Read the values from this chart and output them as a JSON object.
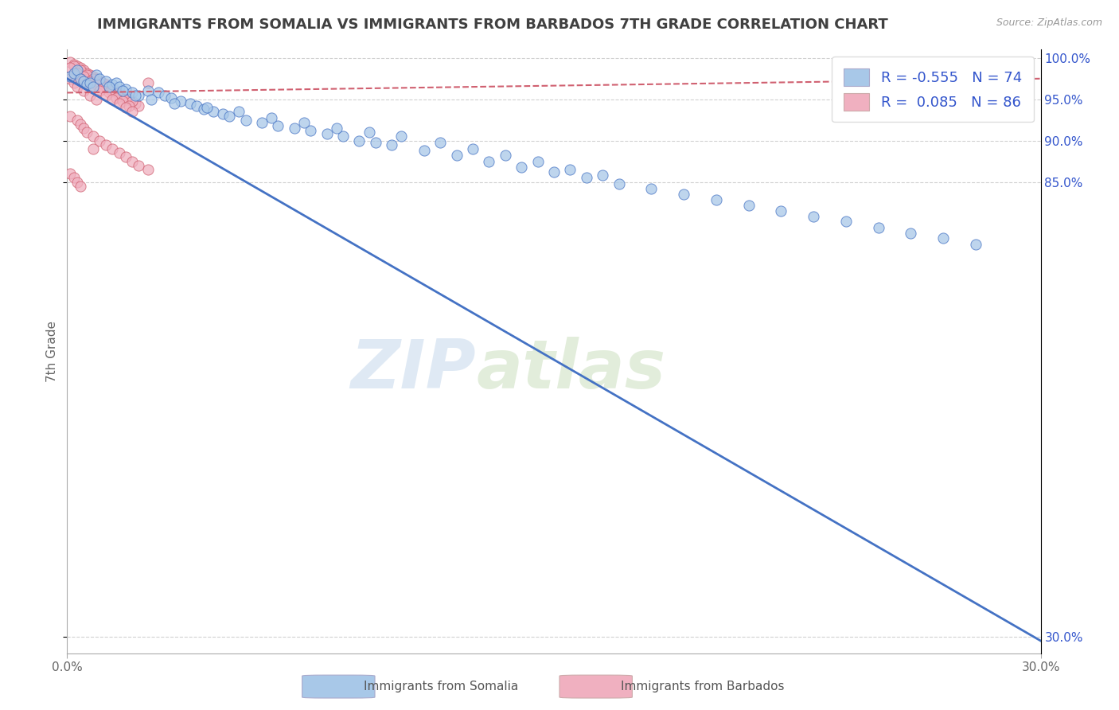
{
  "title": "IMMIGRANTS FROM SOMALIA VS IMMIGRANTS FROM BARBADOS 7TH GRADE CORRELATION CHART",
  "source": "Source: ZipAtlas.com",
  "ylabel": "7th Grade",
  "xlabel_somalia": "Immigrants from Somalia",
  "xlabel_barbados": "Immigrants from Barbados",
  "xlim": [
    0.0,
    0.3
  ],
  "ylim": [
    0.28,
    1.01
  ],
  "R_somalia": -0.555,
  "N_somalia": 74,
  "R_barbados": 0.085,
  "N_barbados": 86,
  "color_somalia": "#a8c8e8",
  "color_barbados": "#f0b0c0",
  "line_somalia": "#4472c4",
  "line_barbados": "#d06070",
  "watermark_zip": "ZIP",
  "watermark_atlas": "atlas",
  "background_color": "#ffffff",
  "grid_color": "#cccccc",
  "title_color": "#404040",
  "legend_text_color": "#3355cc",
  "trend_somalia_x0": 0.0,
  "trend_somalia_y0": 0.975,
  "trend_somalia_x1": 0.3,
  "trend_somalia_y1": 0.295,
  "trend_barbados_x0": 0.0,
  "trend_barbados_y0": 0.958,
  "trend_barbados_x1": 0.3,
  "trend_barbados_y1": 0.975,
  "somalia_scatter_x": [
    0.001,
    0.002,
    0.003,
    0.004,
    0.005,
    0.006,
    0.007,
    0.008,
    0.009,
    0.01,
    0.012,
    0.014,
    0.015,
    0.016,
    0.018,
    0.02,
    0.022,
    0.025,
    0.028,
    0.03,
    0.032,
    0.035,
    0.038,
    0.04,
    0.042,
    0.045,
    0.048,
    0.05,
    0.055,
    0.06,
    0.065,
    0.07,
    0.075,
    0.08,
    0.085,
    0.09,
    0.095,
    0.1,
    0.11,
    0.12,
    0.13,
    0.14,
    0.15,
    0.16,
    0.17,
    0.18,
    0.19,
    0.2,
    0.21,
    0.22,
    0.23,
    0.24,
    0.25,
    0.26,
    0.27,
    0.28,
    0.013,
    0.017,
    0.021,
    0.026,
    0.033,
    0.043,
    0.053,
    0.063,
    0.073,
    0.083,
    0.093,
    0.103,
    0.115,
    0.125,
    0.135,
    0.145,
    0.155,
    0.165
  ],
  "somalia_scatter_y": [
    0.978,
    0.982,
    0.985,
    0.975,
    0.972,
    0.968,
    0.97,
    0.965,
    0.98,
    0.975,
    0.972,
    0.968,
    0.97,
    0.965,
    0.962,
    0.958,
    0.955,
    0.96,
    0.958,
    0.955,
    0.952,
    0.948,
    0.945,
    0.942,
    0.938,
    0.935,
    0.932,
    0.93,
    0.925,
    0.922,
    0.918,
    0.915,
    0.912,
    0.908,
    0.905,
    0.9,
    0.898,
    0.895,
    0.888,
    0.882,
    0.875,
    0.868,
    0.862,
    0.855,
    0.848,
    0.842,
    0.835,
    0.828,
    0.822,
    0.815,
    0.808,
    0.802,
    0.795,
    0.788,
    0.782,
    0.775,
    0.965,
    0.96,
    0.955,
    0.95,
    0.945,
    0.94,
    0.935,
    0.928,
    0.922,
    0.915,
    0.91,
    0.905,
    0.898,
    0.89,
    0.882,
    0.875,
    0.865,
    0.858
  ],
  "barbados_scatter_x": [
    0.001,
    0.002,
    0.003,
    0.004,
    0.005,
    0.006,
    0.007,
    0.008,
    0.009,
    0.01,
    0.011,
    0.012,
    0.013,
    0.014,
    0.015,
    0.016,
    0.017,
    0.018,
    0.019,
    0.02,
    0.021,
    0.022,
    0.003,
    0.005,
    0.007,
    0.009,
    0.011,
    0.013,
    0.015,
    0.017,
    0.002,
    0.004,
    0.006,
    0.008,
    0.01,
    0.012,
    0.014,
    0.016,
    0.018,
    0.02,
    0.001,
    0.003,
    0.005,
    0.007,
    0.009,
    0.011,
    0.013,
    0.015,
    0.017,
    0.019,
    0.002,
    0.004,
    0.006,
    0.008,
    0.01,
    0.012,
    0.014,
    0.016,
    0.018,
    0.02,
    0.001,
    0.002,
    0.003,
    0.005,
    0.007,
    0.009,
    0.001,
    0.003,
    0.004,
    0.005,
    0.006,
    0.008,
    0.01,
    0.012,
    0.014,
    0.016,
    0.018,
    0.02,
    0.022,
    0.025,
    0.001,
    0.002,
    0.003,
    0.004,
    0.008,
    0.025
  ],
  "barbados_scatter_y": [
    0.995,
    0.992,
    0.99,
    0.988,
    0.985,
    0.982,
    0.98,
    0.978,
    0.975,
    0.972,
    0.97,
    0.968,
    0.965,
    0.962,
    0.96,
    0.958,
    0.955,
    0.952,
    0.95,
    0.948,
    0.945,
    0.942,
    0.985,
    0.975,
    0.972,
    0.968,
    0.965,
    0.962,
    0.958,
    0.955,
    0.99,
    0.985,
    0.98,
    0.975,
    0.97,
    0.965,
    0.96,
    0.955,
    0.952,
    0.948,
    0.988,
    0.982,
    0.978,
    0.972,
    0.968,
    0.963,
    0.958,
    0.952,
    0.948,
    0.942,
    0.98,
    0.975,
    0.97,
    0.965,
    0.96,
    0.955,
    0.95,
    0.945,
    0.94,
    0.935,
    0.975,
    0.97,
    0.965,
    0.96,
    0.955,
    0.95,
    0.93,
    0.925,
    0.92,
    0.915,
    0.91,
    0.905,
    0.9,
    0.895,
    0.89,
    0.885,
    0.88,
    0.875,
    0.87,
    0.865,
    0.86,
    0.855,
    0.85,
    0.845,
    0.89,
    0.97
  ]
}
